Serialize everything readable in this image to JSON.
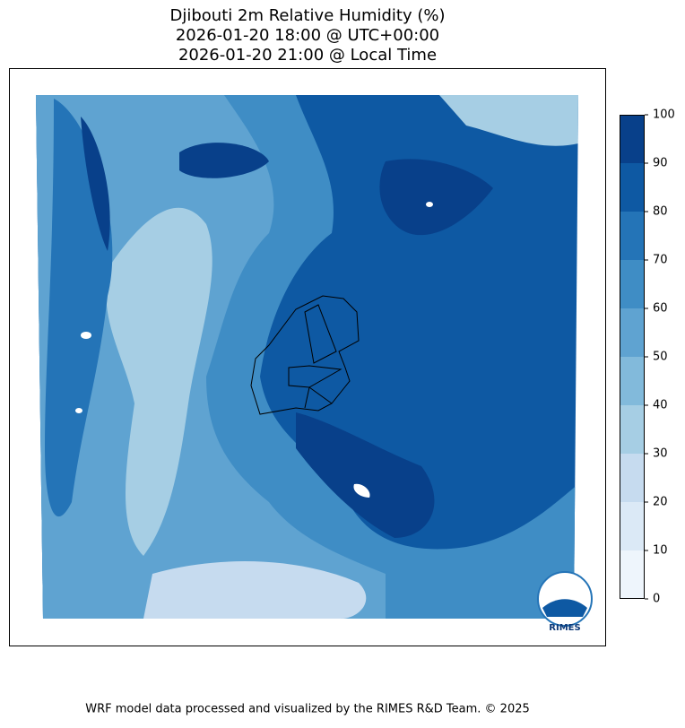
{
  "title": [
    "Djibouti 2m Relative Humidity (%)",
    "2026-01-20 18:00 @ UTC+00:00",
    "2026-01-20 21:00 @ Local Time"
  ],
  "colorbar": {
    "ticks": [
      0,
      10,
      20,
      30,
      40,
      50,
      60,
      70,
      80,
      90,
      100
    ],
    "colors": [
      "#eef5fc",
      "#dbe9f6",
      "#c6dbef",
      "#a6cee4",
      "#82badb",
      "#5fa3d1",
      "#3f8dc5",
      "#2474b7",
      "#0e59a3",
      "#08408a"
    ]
  },
  "logo_text": "RIMES",
  "footer": "WRF model data processed and visualized by the RIMES R&D Team. © 2025"
}
